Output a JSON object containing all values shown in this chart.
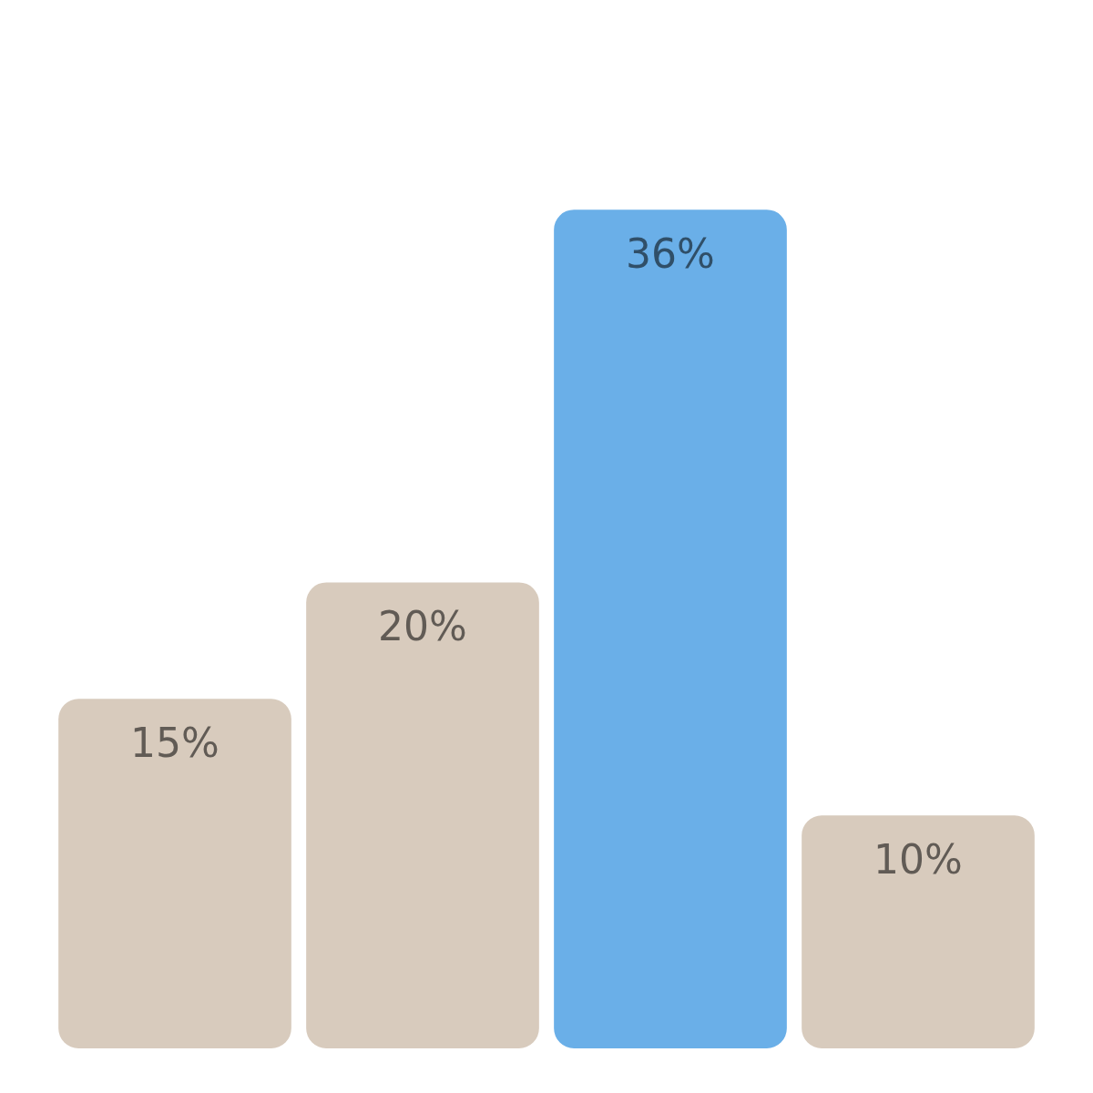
{
  "chart_data": {
    "type": "bar",
    "categories": [
      null,
      null,
      null,
      null
    ],
    "values": [
      15,
      20,
      36,
      10
    ],
    "colors": [
      "#d8cbbd",
      "#d8cbbd",
      "#6aafe8",
      "#d8cbbd"
    ],
    "value_labels": [
      "15%",
      "20%",
      "36%",
      "10%"
    ]
  }
}
